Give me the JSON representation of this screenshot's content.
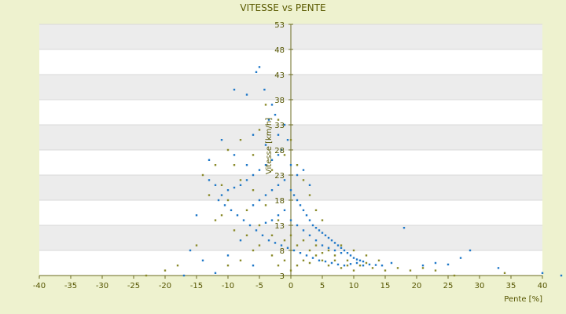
{
  "chart_data": {
    "type": "scatter",
    "title": "VITESSE vs PENTE",
    "xlabel": "Pente [%]",
    "ylabel": "Vitesse [km/h]",
    "xlim": [
      -40,
      40
    ],
    "ylim": [
      3,
      53
    ],
    "x_ticks": [
      -40,
      -35,
      -30,
      -25,
      -20,
      -15,
      -10,
      -5,
      0,
      5,
      10,
      15,
      20,
      25,
      30,
      35,
      40
    ],
    "y_ticks": [
      3,
      8,
      13,
      18,
      23,
      28,
      33,
      38,
      43,
      48,
      53
    ],
    "grid": "horizontal bands",
    "legend": "none",
    "colors": {
      "page_background": "#eef2cf",
      "band_light": "#ffffff",
      "band_dark": "#ececec",
      "series_1": "#1f78c8",
      "series_2": "#8a8a2a",
      "axis": "#6b6b20"
    },
    "series": [
      {
        "color": "#1f78c8",
        "points": [
          [
            -5,
            44.5
          ],
          [
            -5.5,
            43.5
          ],
          [
            -4.2,
            40
          ],
          [
            -7,
            39
          ],
          [
            -9,
            40
          ],
          [
            -3,
            37
          ],
          [
            -2.5,
            35
          ],
          [
            -3.5,
            34
          ],
          [
            -1,
            33
          ],
          [
            -0.5,
            30
          ],
          [
            -1.5,
            28
          ],
          [
            -2,
            27
          ],
          [
            -3,
            26
          ],
          [
            -4,
            25
          ],
          [
            -5,
            24
          ],
          [
            -6,
            23
          ],
          [
            -7,
            22
          ],
          [
            -8,
            21
          ],
          [
            -9,
            20.5
          ],
          [
            -10,
            20
          ],
          [
            -11,
            19
          ],
          [
            -12,
            21
          ],
          [
            -13,
            22
          ],
          [
            -11.5,
            18
          ],
          [
            -10.5,
            17
          ],
          [
            -9.5,
            16
          ],
          [
            -8.5,
            15
          ],
          [
            -7.5,
            14
          ],
          [
            -6.5,
            13
          ],
          [
            -5.5,
            12
          ],
          [
            -4.5,
            11
          ],
          [
            -3.5,
            10
          ],
          [
            -2.5,
            9.5
          ],
          [
            -1.5,
            9
          ],
          [
            -0.5,
            8.5
          ],
          [
            0.5,
            8
          ],
          [
            1.5,
            7.5
          ],
          [
            2.5,
            7
          ],
          [
            3.5,
            6.5
          ],
          [
            4.5,
            6
          ],
          [
            5.5,
            5.8
          ],
          [
            6.5,
            5.5
          ],
          [
            7.5,
            5.2
          ],
          [
            8.5,
            5
          ],
          [
            9.5,
            5.3
          ],
          [
            10.5,
            5.5
          ],
          [
            11.5,
            5
          ],
          [
            12.5,
            5.2
          ],
          [
            13.5,
            5.1
          ],
          [
            14.5,
            5
          ],
          [
            16,
            5.5
          ],
          [
            18,
            12.5
          ],
          [
            21,
            5
          ],
          [
            23,
            5.5
          ],
          [
            25,
            5.2
          ],
          [
            27,
            6.5
          ],
          [
            28.5,
            8
          ],
          [
            33,
            4.5
          ],
          [
            40,
            3.5
          ],
          [
            43,
            3
          ],
          [
            0,
            20
          ],
          [
            0.5,
            19
          ],
          [
            1,
            18
          ],
          [
            1.5,
            17
          ],
          [
            2,
            16
          ],
          [
            2.5,
            15
          ],
          [
            3,
            14
          ],
          [
            3.5,
            13
          ],
          [
            4,
            12.5
          ],
          [
            4.5,
            12
          ],
          [
            5,
            11.5
          ],
          [
            5.5,
            11
          ],
          [
            6,
            10.5
          ],
          [
            6.5,
            10
          ],
          [
            7,
            9.5
          ],
          [
            7.5,
            9
          ],
          [
            8,
            8.5
          ],
          [
            8.5,
            8
          ],
          [
            9,
            7.5
          ],
          [
            9.5,
            7
          ],
          [
            10,
            6.5
          ],
          [
            10.5,
            6.2
          ],
          [
            11,
            6
          ],
          [
            11.5,
            5.8
          ],
          [
            -1,
            22
          ],
          [
            -2,
            21
          ],
          [
            -3,
            20
          ],
          [
            -4,
            19
          ],
          [
            -5,
            18
          ],
          [
            -6,
            17
          ],
          [
            -1,
            16
          ],
          [
            -2,
            15
          ],
          [
            -3,
            14
          ],
          [
            -4,
            13.5
          ],
          [
            0,
            14
          ],
          [
            1,
            13
          ],
          [
            2,
            12
          ],
          [
            3,
            11
          ],
          [
            4,
            10
          ],
          [
            5,
            9
          ],
          [
            6,
            8.5
          ],
          [
            7,
            8
          ],
          [
            8,
            7.5
          ],
          [
            -13,
            26
          ],
          [
            -11,
            30
          ],
          [
            -9,
            27
          ],
          [
            -7,
            25
          ],
          [
            -6,
            31
          ],
          [
            -4,
            29
          ],
          [
            -2,
            31
          ],
          [
            0,
            25
          ],
          [
            1,
            23
          ],
          [
            2,
            24
          ],
          [
            3,
            21
          ],
          [
            -15,
            15
          ],
          [
            -16,
            8
          ],
          [
            -14,
            6
          ],
          [
            -12,
            3.5
          ],
          [
            -10,
            7
          ],
          [
            -8,
            10
          ],
          [
            -6,
            5
          ],
          [
            -17,
            3
          ]
        ]
      },
      {
        "color": "#8a8a2a",
        "points": [
          [
            -4,
            37
          ],
          [
            -2,
            34
          ],
          [
            -5,
            32
          ],
          [
            -8,
            30
          ],
          [
            -10,
            28
          ],
          [
            -12,
            25
          ],
          [
            -14,
            23
          ],
          [
            -13,
            19
          ],
          [
            -11,
            15
          ],
          [
            -9,
            12
          ],
          [
            -7,
            11
          ],
          [
            -5,
            9
          ],
          [
            -3,
            7
          ],
          [
            -1,
            6
          ],
          [
            1,
            5
          ],
          [
            3,
            5.5
          ],
          [
            5,
            6
          ],
          [
            7,
            7
          ],
          [
            9,
            6
          ],
          [
            11,
            5
          ],
          [
            13,
            4.5
          ],
          [
            15,
            4
          ],
          [
            17,
            4.5
          ],
          [
            19,
            4
          ],
          [
            21,
            4.5
          ],
          [
            23,
            4
          ],
          [
            26,
            3
          ],
          [
            34,
            3.5
          ],
          [
            -23,
            3
          ],
          [
            -20,
            4
          ],
          [
            -18,
            5
          ],
          [
            -15,
            9
          ],
          [
            -12,
            14
          ],
          [
            -10,
            18
          ],
          [
            -8,
            22
          ],
          [
            -6,
            20
          ],
          [
            -4,
            17
          ],
          [
            -2,
            14
          ],
          [
            0,
            11
          ],
          [
            2,
            10
          ],
          [
            4,
            9
          ],
          [
            6,
            8
          ],
          [
            8,
            9
          ],
          [
            10,
            8
          ],
          [
            12,
            7
          ],
          [
            14,
            6
          ],
          [
            -1,
            27
          ],
          [
            0,
            30
          ],
          [
            1,
            25
          ],
          [
            2,
            22
          ],
          [
            3,
            19
          ],
          [
            4,
            16
          ],
          [
            5,
            14
          ],
          [
            -3,
            24
          ],
          [
            -6,
            27
          ],
          [
            -9,
            25
          ],
          [
            -11,
            21
          ],
          [
            -7,
            16
          ],
          [
            -5,
            13
          ],
          [
            -3,
            11
          ],
          [
            -1,
            10
          ],
          [
            1,
            9
          ],
          [
            3,
            8
          ],
          [
            5,
            7.5
          ],
          [
            7,
            6
          ],
          [
            9,
            5
          ],
          [
            -6,
            8
          ],
          [
            -8,
            6
          ],
          [
            -10,
            5
          ],
          [
            -2,
            5
          ],
          [
            0,
            4
          ],
          [
            2,
            6
          ],
          [
            4,
            7
          ],
          [
            6,
            5
          ],
          [
            8,
            4.5
          ],
          [
            10,
            4
          ],
          [
            12,
            5.5
          ]
        ]
      }
    ]
  }
}
